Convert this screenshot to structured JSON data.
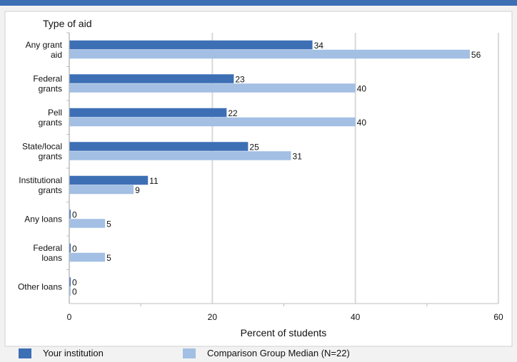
{
  "chart_data": {
    "type": "bar",
    "orientation": "horizontal",
    "title": "Type of aid",
    "xlabel": "Percent of students",
    "xlim": [
      0,
      60
    ],
    "xticks": [
      0,
      20,
      40,
      60
    ],
    "grid": true,
    "legend_position": "bottom",
    "categories": [
      [
        "Any grant",
        "aid"
      ],
      [
        "Federal",
        "grants"
      ],
      [
        "Pell",
        "grants"
      ],
      [
        "State/local",
        "grants"
      ],
      [
        "Institutional",
        "grants"
      ],
      [
        "Any loans"
      ],
      [
        "Federal",
        "loans"
      ],
      [
        "Other loans"
      ]
    ],
    "series": [
      {
        "name": "Your institution",
        "color": "#3d6fb5",
        "values": [
          34,
          23,
          22,
          25,
          11,
          0,
          0,
          0
        ]
      },
      {
        "name": "Comparison Group Median (N=22)",
        "color": "#a3bfe3",
        "values": [
          56,
          40,
          40,
          31,
          9,
          5,
          5,
          0
        ]
      }
    ]
  }
}
